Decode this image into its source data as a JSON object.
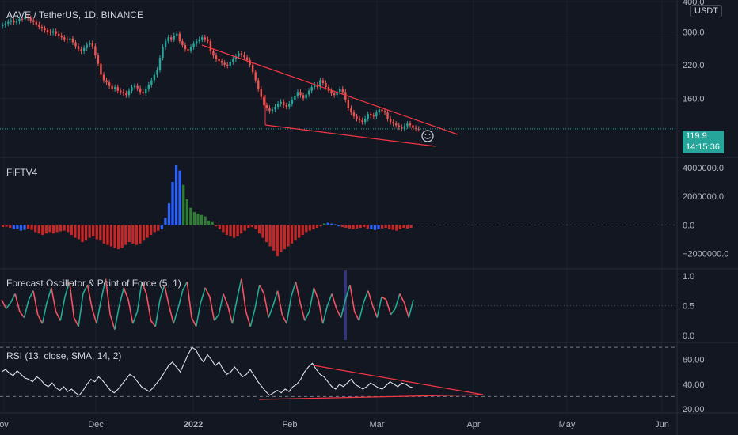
{
  "header": {
    "title": "AAVE / TetherUS, 1D, BINANCE",
    "currency": "USDT"
  },
  "price": {
    "last": "119.9",
    "countdown": "14:15:36"
  },
  "colors": {
    "up": "#26a69a",
    "down": "#ef5350",
    "trend": "#f23645",
    "blue": "#2962ff",
    "green": "#2e7d32",
    "red": "#c62828",
    "osc_up": "#22ab94",
    "osc_down": "#f7525f",
    "bg": "#131722"
  },
  "chart_data": [
    {
      "type": "candlestick",
      "title": "AAVE / TetherUS, 1D, BINANCE",
      "x": [
        "Nov",
        "Dec",
        "2022",
        "Feb",
        "Mar",
        "Apr",
        "May",
        "Jun"
      ],
      "y_ticks": [
        "400.0",
        "300.0",
        "220.0",
        "160.0"
      ],
      "ylim": [
        95,
        400
      ],
      "y_scale": "log",
      "close_series": [
        320,
        325,
        330,
        335,
        328,
        332,
        340,
        338,
        345,
        342,
        335,
        330,
        322,
        315,
        310,
        305,
        300,
        298,
        302,
        295,
        290,
        285,
        280,
        278,
        282,
        272,
        262,
        255,
        250,
        258,
        266,
        270,
        262,
        240,
        222,
        200,
        190,
        186,
        180,
        175,
        178,
        172,
        170,
        168,
        165,
        172,
        178,
        180,
        176,
        170,
        168,
        175,
        182,
        190,
        200,
        210,
        235,
        260,
        275,
        285,
        280,
        290,
        295,
        275,
        265,
        255,
        252,
        260,
        268,
        275,
        280,
        285,
        280,
        275,
        250,
        240,
        232,
        228,
        224,
        220,
        218,
        226,
        232,
        238,
        245,
        242,
        236,
        230,
        220,
        205,
        190,
        175,
        162,
        150,
        146,
        142,
        144,
        148,
        152,
        155,
        150,
        148,
        152,
        158,
        164,
        170,
        165,
        160,
        166,
        172,
        178,
        182,
        178,
        190,
        185,
        178,
        172,
        168,
        165,
        170,
        175,
        170,
        158,
        146,
        140,
        135,
        132,
        130,
        128,
        132,
        138,
        136,
        135,
        140,
        144,
        142,
        140,
        132,
        128,
        126,
        124,
        122,
        120,
        123,
        126,
        124,
        121,
        120,
        119.9
      ],
      "trendlines": "falling wedge: upper line from Jan peak to late Mar, lower line from early Feb low to late Mar"
    },
    {
      "type": "bar",
      "title": "FiFTV4",
      "y_ticks": [
        "4000000.0",
        "2000000.0",
        "0.0",
        "−2000000.0"
      ],
      "ylim": [
        -2800000,
        4500000
      ],
      "values": [
        -150000,
        -120000,
        -200000,
        -300000,
        -250000,
        -400000,
        -350000,
        -280000,
        -350000,
        -500000,
        -600000,
        -700000,
        -600000,
        -500000,
        -600000,
        -500000,
        -450000,
        -400000,
        -500000,
        -700000,
        -900000,
        -1000000,
        -1200000,
        -1100000,
        -900000,
        -800000,
        -1000000,
        -1100000,
        -1300000,
        -1400000,
        -1500000,
        -1600000,
        -1700000,
        -1600000,
        -1400000,
        -1200000,
        -1300000,
        -1400000,
        -1300000,
        -1100000,
        -900000,
        -700000,
        -500000,
        -400000,
        -300000,
        500000,
        1500000,
        3000000,
        4200000,
        3800000,
        2800000,
        1800000,
        1200000,
        900000,
        800000,
        700000,
        600000,
        300000,
        200000,
        -100000,
        -300000,
        -500000,
        -700000,
        -800000,
        -900000,
        -800000,
        -600000,
        -400000,
        -200000,
        -150000,
        -300000,
        -600000,
        -900000,
        -1200000,
        -1500000,
        -1800000,
        -2200000,
        -1900000,
        -1700000,
        -1500000,
        -1300000,
        -1100000,
        -900000,
        -700000,
        -500000,
        -400000,
        -300000,
        -200000,
        -100000,
        100000,
        150000,
        100000,
        50000,
        -100000,
        -150000,
        -200000,
        -250000,
        -300000,
        -250000,
        -200000,
        -150000,
        -250000,
        -300000,
        -350000,
        -300000,
        -250000,
        -200000,
        -300000,
        -350000,
        -400000,
        -300000,
        -200000,
        -250000,
        -200000
      ]
    },
    {
      "type": "line",
      "title": "Forecast Oscillator & Point of Force (5, 1)",
      "y_ticks": [
        "1.0",
        "0.5",
        "0.0"
      ],
      "ylim": [
        -0.05,
        1.05
      ],
      "values": [
        0.6,
        0.45,
        0.55,
        0.7,
        0.4,
        0.3,
        0.6,
        0.75,
        0.35,
        0.2,
        0.55,
        0.8,
        0.4,
        0.25,
        0.65,
        0.9,
        0.3,
        0.15,
        0.7,
        0.85,
        0.45,
        0.2,
        0.6,
        0.95,
        0.35,
        0.1,
        0.5,
        0.8,
        0.6,
        0.2,
        0.4,
        0.9,
        0.7,
        0.25,
        0.15,
        0.6,
        0.85,
        0.5,
        0.2,
        0.45,
        0.75,
        0.9,
        0.3,
        0.15,
        0.55,
        0.8,
        0.65,
        0.25,
        0.35,
        0.7,
        0.5,
        0.2,
        0.6,
        0.95,
        0.4,
        0.15,
        0.45,
        0.85,
        0.7,
        0.3,
        0.5,
        0.75,
        0.35,
        0.2,
        0.65,
        0.9,
        0.55,
        0.25,
        0.4,
        0.8,
        0.6,
        0.2,
        0.5,
        0.7,
        0.45,
        0.3,
        0.6,
        0.85,
        0.4,
        0.25,
        0.55,
        0.75,
        0.5,
        0.3,
        0.65,
        0.6,
        0.35,
        0.45,
        0.7,
        0.55,
        0.3,
        0.6
      ]
    },
    {
      "type": "line",
      "title": "RSI (13, close, SMA, 14, 2)",
      "y_ticks": [
        "60.00",
        "40.00",
        "20.00"
      ],
      "ylim": [
        18,
        72
      ],
      "hlines": [
        70,
        30
      ],
      "values": [
        50,
        52,
        49,
        47,
        51,
        48,
        45,
        44,
        42,
        46,
        44,
        40,
        38,
        41,
        37,
        35,
        38,
        34,
        36,
        33,
        31,
        35,
        40,
        44,
        42,
        46,
        43,
        39,
        35,
        33,
        36,
        40,
        44,
        48,
        46,
        42,
        38,
        36,
        34,
        37,
        41,
        45,
        50,
        55,
        58,
        54,
        50,
        57,
        64,
        70,
        68,
        62,
        58,
        64,
        60,
        55,
        58,
        52,
        48,
        50,
        54,
        50,
        46,
        48,
        52,
        47,
        42,
        38,
        34,
        31,
        33,
        35,
        33,
        36,
        34,
        38,
        40,
        44,
        50,
        54,
        57,
        52,
        48,
        46,
        42,
        38,
        36,
        40,
        38,
        41,
        44,
        40,
        38,
        36,
        38,
        41,
        39,
        37,
        36,
        39,
        42,
        40,
        38,
        41,
        40,
        38,
        37
      ]
    }
  ],
  "x_labels": [
    "ov",
    "Dec",
    "2022",
    "Feb",
    "Mar",
    "Apr",
    "May",
    "Jun"
  ]
}
